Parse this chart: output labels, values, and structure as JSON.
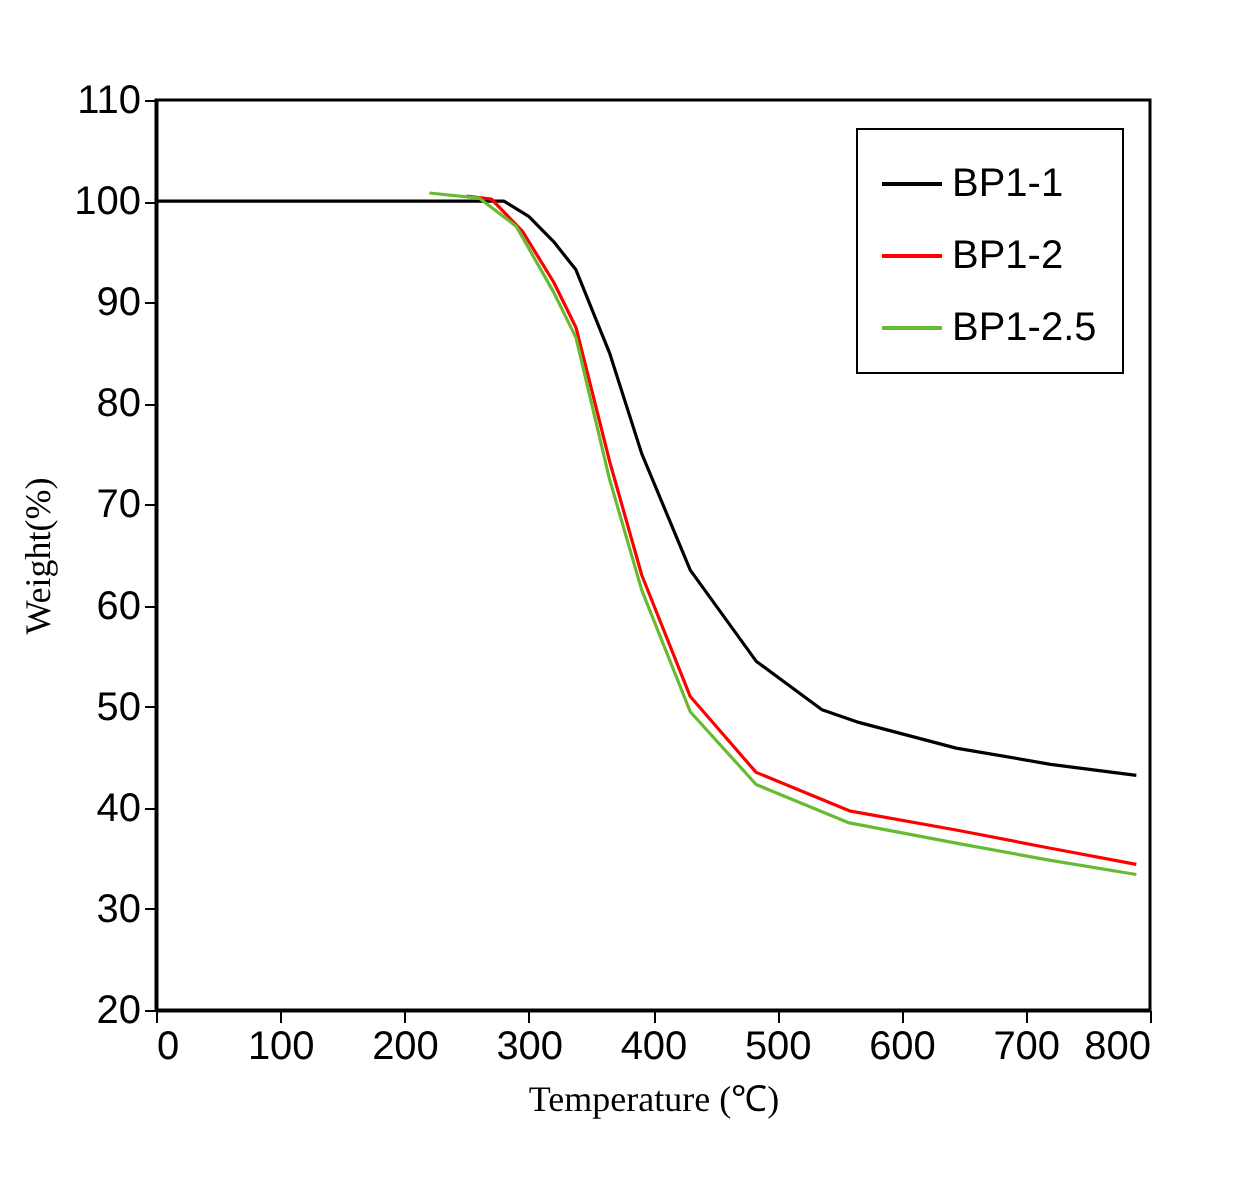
{
  "chart_data": {
    "type": "line",
    "xlabel": "Temperature (℃)",
    "ylabel": "Weight(%)",
    "xlim": [
      0,
      800
    ],
    "ylim": [
      20,
      110
    ],
    "xticks": [
      0,
      100,
      200,
      300,
      400,
      500,
      600,
      700,
      800
    ],
    "yticks": [
      20,
      30,
      40,
      50,
      60,
      70,
      80,
      90,
      100,
      110
    ],
    "grid": false,
    "legend": "top right",
    "marker": "none",
    "line_style": "solid",
    "series": [
      {
        "name": "BP1-1",
        "color": "#000000",
        "x": [
          0,
          100,
          200,
          280,
          300,
          320,
          338,
          365,
          391,
          430,
          483,
          536,
          564,
          644,
          720,
          789
        ],
        "values": [
          100,
          100,
          100,
          100,
          98.5,
          96,
          93.2,
          85,
          75,
          63.5,
          54.5,
          49.7,
          48.5,
          45.9,
          44.3,
          43.2
        ]
      },
      {
        "name": "BP1-2",
        "color": "#ff0000",
        "x": [
          250,
          270,
          295,
          320,
          338,
          365,
          391,
          430,
          483,
          558,
          644,
          720,
          789
        ],
        "values": [
          100.5,
          100.2,
          97,
          92,
          87.5,
          74.3,
          63,
          51,
          43.5,
          39.7,
          37.8,
          36,
          34.4
        ]
      },
      {
        "name": "BP1-2.5",
        "color": "#66bb33",
        "x": [
          220,
          260,
          290,
          320,
          338,
          365,
          391,
          430,
          483,
          558,
          644,
          720,
          789
        ],
        "values": [
          100.8,
          100.3,
          97.5,
          91,
          86.5,
          72.5,
          61.5,
          49.5,
          42.3,
          38.5,
          36.5,
          34.8,
          33.4
        ]
      }
    ]
  }
}
